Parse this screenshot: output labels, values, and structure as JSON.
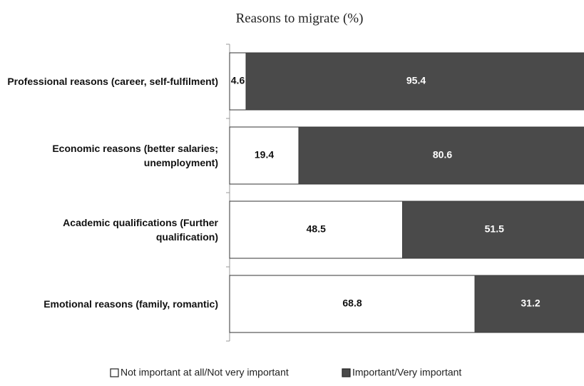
{
  "chart_data": {
    "type": "stacked_bar_horizontal",
    "title": "Reasons to migrate (%)",
    "categories": [
      "Professional reasons  (career, self-fulfilment)",
      "Economic reasons (better salaries; unemployment)",
      "Academic qualifications (Further qualification)",
      "Emotional reasons (family, romantic)"
    ],
    "series": [
      {
        "name": "Not important at all/Not very important",
        "color": "#ffffff",
        "values": [
          4.6,
          19.4,
          48.5,
          68.8
        ]
      },
      {
        "name": "Important/Very important",
        "color": "#4a4a4a",
        "values": [
          95.4,
          80.6,
          51.5,
          31.2
        ]
      }
    ],
    "xlim": [
      0,
      100
    ],
    "legend": "bottom"
  }
}
